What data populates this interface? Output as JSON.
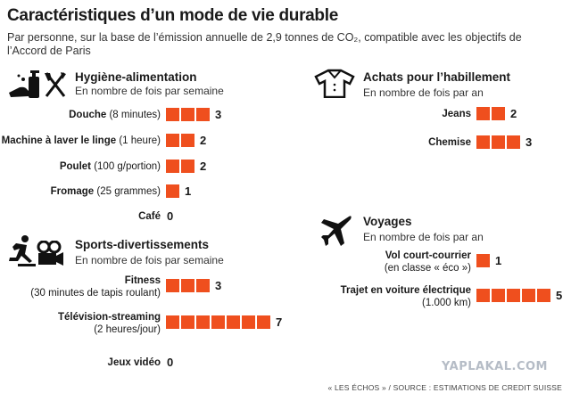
{
  "title": "Caractéristiques d’un mode de vie durable",
  "subtitle": "Par personne, sur la base de l’émission annuelle de 2,9 tonnes de CO₂, compatible avec les objectifs de l’Accord de Paris",
  "chart_data": {
    "type": "bar",
    "unit_style": "squares",
    "bar_color": "#ef4f1e",
    "panels": [
      {
        "name": "Hygiène-alimentation",
        "note": "En nombre de fois par semaine",
        "icons": [
          "hand-soap-icon",
          "fork-knife-icon"
        ],
        "items": [
          {
            "label": "Douche",
            "detail": "(8 minutes)",
            "value": 3
          },
          {
            "label": "Machine à laver le linge",
            "detail": "(1 heure)",
            "value": 2
          },
          {
            "label": "Poulet",
            "detail": "(100 g/portion)",
            "value": 2
          },
          {
            "label": "Fromage",
            "detail": "(25 grammes)",
            "value": 1
          },
          {
            "label": "Café",
            "detail": "",
            "value": 0
          }
        ]
      },
      {
        "name": "Sports-divertissements",
        "note": "En nombre de fois par semaine",
        "icons": [
          "runner-icon",
          "film-camera-icon"
        ],
        "items": [
          {
            "label": "Fitness",
            "detail": "(30 minutes de tapis roulant)",
            "value": 3
          },
          {
            "label": "Télévision-streaming",
            "detail": "(2 heures/jour)",
            "value": 7
          },
          {
            "label": "Jeux vidéo",
            "detail": "",
            "value": 0
          }
        ]
      },
      {
        "name": "Achats pour l’habillement",
        "note": "En nombre de fois par an",
        "icons": [
          "shirt-icon"
        ],
        "items": [
          {
            "label": "Jeans",
            "detail": "",
            "value": 2
          },
          {
            "label": "Chemise",
            "detail": "",
            "value": 3
          }
        ]
      },
      {
        "name": "Voyages",
        "note": "En nombre de fois par an",
        "icons": [
          "airplane-icon"
        ],
        "items": [
          {
            "label": "Vol court-courrier",
            "detail": "(en classe « éco »)",
            "value": 1
          },
          {
            "label": "Trajet en voiture électrique",
            "detail": "(1.000 km)",
            "value": 5
          }
        ]
      }
    ]
  },
  "watermark": "YAPLAKAL.COM",
  "footer": "« LES ÉCHOS » / SOURCE : ESTIMATIONS DE CREDIT SUISSE"
}
